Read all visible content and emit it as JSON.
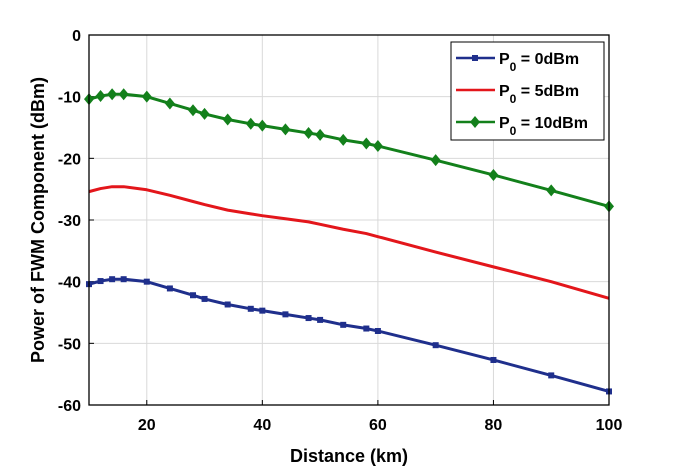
{
  "chart_data": {
    "type": "line",
    "title": "",
    "xlabel": "Distance (km)",
    "ylabel": "Power of FWM Component (dBm)",
    "xlim": [
      10,
      100
    ],
    "ylim": [
      -60,
      0
    ],
    "xticks": [
      20,
      40,
      60,
      80,
      100
    ],
    "yticks": [
      0,
      -10,
      -20,
      -30,
      -40,
      -50,
      -60
    ],
    "grid": true,
    "legend_position": "top-right",
    "series": [
      {
        "name": "P0 = 0dBm",
        "label_main": "P",
        "label_sub": "0",
        "label_rest": " = 0dBm",
        "color": "#1f2f8c",
        "marker": "square",
        "x": [
          10,
          12,
          14,
          16,
          20,
          24,
          28,
          30,
          34,
          38,
          40,
          44,
          48,
          50,
          54,
          58,
          60,
          70,
          80,
          90,
          100
        ],
        "y": [
          -40.4,
          -39.9,
          -39.6,
          -39.6,
          -40.0,
          -41.1,
          -42.2,
          -42.8,
          -43.7,
          -44.4,
          -44.7,
          -45.3,
          -45.9,
          -46.2,
          -47.0,
          -47.6,
          -48.0,
          -50.3,
          -52.7,
          -55.2,
          -57.8
        ]
      },
      {
        "name": "P0 = 5dBm",
        "label_main": "P",
        "label_sub": "0",
        "label_rest": " = 5dBm",
        "color": "#e3161b",
        "marker": "none",
        "x": [
          10,
          12,
          14,
          16,
          20,
          24,
          28,
          30,
          34,
          38,
          40,
          44,
          48,
          50,
          54,
          58,
          60,
          70,
          80,
          90,
          100
        ],
        "y": [
          -25.4,
          -24.9,
          -24.6,
          -24.6,
          -25.1,
          -26.0,
          -27.0,
          -27.5,
          -28.4,
          -29.0,
          -29.3,
          -29.8,
          -30.3,
          -30.7,
          -31.5,
          -32.2,
          -32.7,
          -35.2,
          -37.6,
          -40.0,
          -42.7
        ]
      },
      {
        "name": "P0 = 10dBm",
        "label_main": "P",
        "label_sub": "0",
        "label_rest": " = 10dBm",
        "color": "#13801b",
        "marker": "diamond",
        "x": [
          10,
          12,
          14,
          16,
          20,
          24,
          28,
          30,
          34,
          38,
          40,
          44,
          48,
          50,
          54,
          58,
          60,
          70,
          80,
          90,
          100
        ],
        "y": [
          -10.4,
          -9.9,
          -9.6,
          -9.6,
          -10.0,
          -11.1,
          -12.2,
          -12.8,
          -13.7,
          -14.4,
          -14.7,
          -15.3,
          -15.9,
          -16.2,
          -17.0,
          -17.6,
          -18.0,
          -20.3,
          -22.7,
          -25.2,
          -27.8
        ]
      }
    ]
  }
}
